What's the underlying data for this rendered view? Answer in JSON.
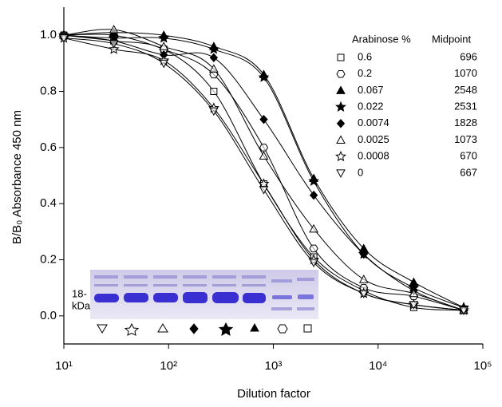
{
  "chart_data": {
    "type": "scatter",
    "xlabel": "Dilution factor",
    "ylabel": "B/B₀ Absorbance 450 nm",
    "log_x": true,
    "xlim": [
      10,
      100000
    ],
    "xticks": [
      {
        "value": 10,
        "label": "10¹"
      },
      {
        "value": 100,
        "label": "10²"
      },
      {
        "value": 1000,
        "label": "10³"
      },
      {
        "value": 10000,
        "label": "10⁴"
      },
      {
        "value": 100000,
        "label": "10⁵"
      }
    ],
    "ylim": [
      -0.1,
      1.1
    ],
    "yticks": [
      {
        "value": 0,
        "label": "0.0"
      },
      0.2,
      0.4,
      0.6,
      0.8,
      {
        "value": 1,
        "label": "1.0"
      }
    ],
    "legend_headers": [
      "Arabinose %",
      "Midpoint"
    ],
    "x": [
      10,
      30,
      90,
      270,
      810,
      2430,
      7290,
      21870,
      65610
    ],
    "series": [
      {
        "name": "0.6",
        "midpoint": 696,
        "marker": "square",
        "color": "#000000",
        "values": [
          1.0,
          0.98,
          0.95,
          0.8,
          0.47,
          0.21,
          0.09,
          0.03,
          0.02
        ]
      },
      {
        "name": "0.2",
        "midpoint": 1070,
        "marker": "hexagon",
        "color": "#000000",
        "values": [
          1.0,
          1.0,
          0.95,
          0.86,
          0.6,
          0.24,
          0.1,
          0.07,
          0.02
        ]
      },
      {
        "name": "0.067",
        "midpoint": 2548,
        "marker": "triangle-filled",
        "color": "#000000",
        "values": [
          1.0,
          1.01,
          1.0,
          0.96,
          0.86,
          0.49,
          0.24,
          0.12,
          0.03
        ]
      },
      {
        "name": "0.022",
        "midpoint": 2531,
        "marker": "star-filled",
        "color": "#000000",
        "values": [
          1.0,
          0.99,
          0.99,
          0.95,
          0.85,
          0.48,
          0.22,
          0.1,
          0.03
        ]
      },
      {
        "name": "0.0074",
        "midpoint": 1828,
        "marker": "diamond-filled",
        "color": "#000000",
        "values": [
          1.0,
          0.98,
          0.93,
          0.92,
          0.7,
          0.43,
          0.22,
          0.09,
          0.02
        ]
      },
      {
        "name": "0.0025",
        "midpoint": 1073,
        "marker": "triangle",
        "color": "#000000",
        "values": [
          1.0,
          1.02,
          0.96,
          0.88,
          0.57,
          0.31,
          0.13,
          0.08,
          0.02
        ]
      },
      {
        "name": "0.0008",
        "midpoint": 670,
        "marker": "star",
        "color": "#000000",
        "values": [
          0.99,
          0.95,
          0.91,
          0.74,
          0.47,
          0.2,
          0.08,
          0.04,
          0.02
        ]
      },
      {
        "name": "0",
        "midpoint": 667,
        "marker": "triangle-down",
        "color": "#000000",
        "values": [
          0.99,
          0.97,
          0.9,
          0.73,
          0.45,
          0.19,
          0.08,
          0.04,
          0.02
        ]
      }
    ],
    "inset_labels": [
      "18-",
      "kDa"
    ]
  }
}
